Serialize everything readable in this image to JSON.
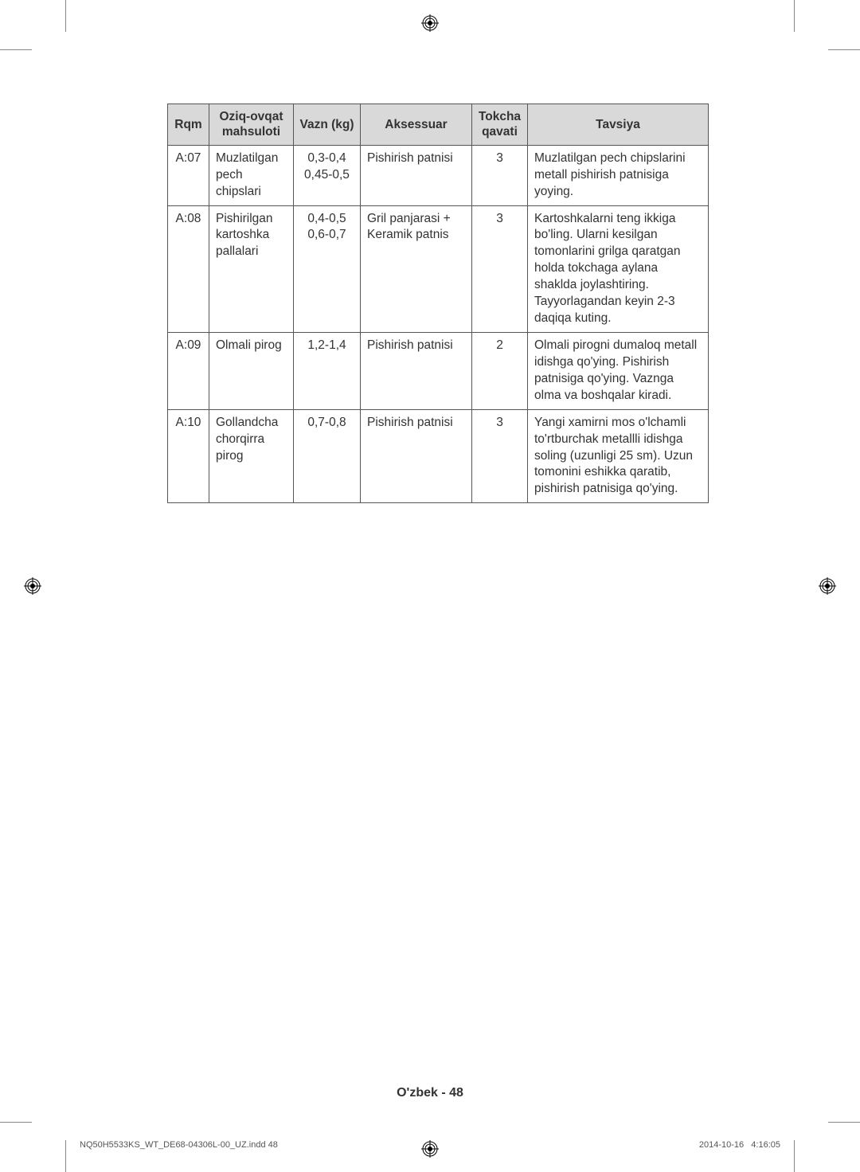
{
  "table": {
    "columns": [
      "Rqm",
      "Oziq-ovqat mahsuloti",
      "Vazn (kg)",
      "Aksessuar",
      "Tokcha qavati",
      "Tavsiya"
    ],
    "col_align": [
      "center",
      "left",
      "center",
      "left",
      "center",
      "left"
    ],
    "col_widths": [
      "52px",
      "106px",
      "84px",
      "140px",
      "70px",
      "auto"
    ],
    "header_bg": "#d9d9d9",
    "border_color": "#555555",
    "font_size": 15.5,
    "rows": [
      {
        "rqm": "A:07",
        "oziq": "Muzlatilgan pech chipslari",
        "vazn": "0,3-0,4\n0,45-0,5",
        "aksessuar": "Pishirish patnisi",
        "tokcha": "3",
        "tavsiya": "Muzlatilgan pech chipslarini metall pishirish patnisiga yoying."
      },
      {
        "rqm": "A:08",
        "oziq": "Pishirilgan kartoshka pallalari",
        "vazn": "0,4-0,5\n0,6-0,7",
        "aksessuar": "Gril panjarasi + Keramik patnis",
        "tokcha": "3",
        "tavsiya": "Kartoshkalarni teng ikkiga bo'ling. Ularni kesilgan tomonlarini grilga qaratgan holda tokchaga aylana shaklda joylashtiring. Tayyorlagandan keyin 2-3 daqiqa kuting."
      },
      {
        "rqm": "A:09",
        "oziq": "Olmali pirog",
        "vazn": "1,2-1,4",
        "aksessuar": "Pishirish patnisi",
        "tokcha": "2",
        "tavsiya": "Olmali pirogni dumaloq metall idishga qo'ying. Pishirish patnisiga qo'ying. Vaznga olma va boshqalar kiradi."
      },
      {
        "rqm": "A:10",
        "oziq": "Gollandcha chorqirra pirog",
        "vazn": "0,7-0,8",
        "aksessuar": "Pishirish patnisi",
        "tokcha": "3",
        "tavsiya": "Yangi xamirni mos o'lchamli to'rtburchak metallli idishga soling (uzunligi 25 sm). Uzun tomonini eshikka qaratib, pishirish patnisiga qo'ying."
      }
    ]
  },
  "footer": {
    "center": "O'zbek - 48",
    "left": "NQ50H5533KS_WT_DE68-04306L-00_UZ.indd   48",
    "right_date": "2014-10-16",
    "right_time": "4:16:05"
  },
  "colors": {
    "background": "#ffffff",
    "text": "#333333",
    "crop": "#888888"
  }
}
